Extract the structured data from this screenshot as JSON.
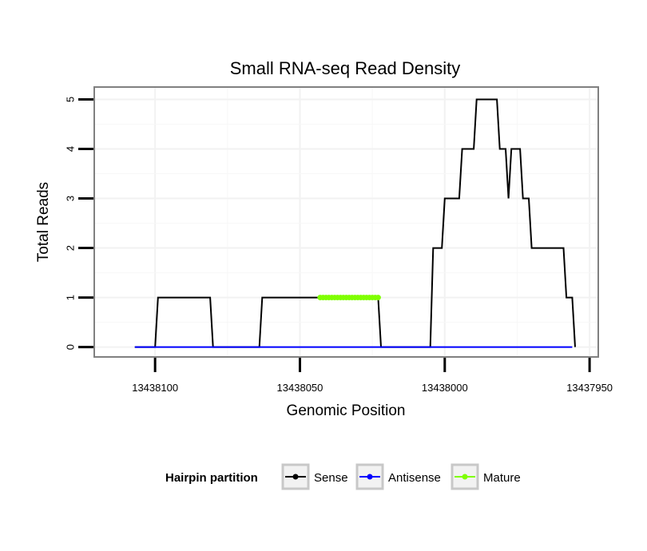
{
  "chart_data": {
    "type": "line",
    "title": "Small RNA-seq Read Density",
    "xlabel": "Genomic Position",
    "ylabel": "Total Reads",
    "xlim": [
      13438121,
      13437947
    ],
    "ylim": [
      -0.2,
      5.25
    ],
    "x_reversed": true,
    "grid": true,
    "x_ticks": [
      13438100,
      13438050,
      13438000,
      13437950
    ],
    "x_tick_labels": [
      "13438100",
      "13438050",
      "13438000",
      "13437950"
    ],
    "y_ticks": [
      0,
      1,
      2,
      3,
      4,
      5
    ],
    "y_tick_labels": [
      "0",
      "1",
      "2",
      "3",
      "4",
      "5"
    ],
    "series": [
      {
        "name": "Sense",
        "color": "#000000",
        "points": [
          [
            13438107,
            0
          ],
          [
            13438100,
            0
          ],
          [
            13438099,
            1
          ],
          [
            13438081,
            1
          ],
          [
            13438080,
            0
          ],
          [
            13438064,
            0
          ],
          [
            13438063,
            1
          ],
          [
            13438043,
            1
          ],
          [
            13438023,
            1
          ],
          [
            13438022,
            0
          ],
          [
            13438005,
            0
          ],
          [
            13438004,
            2
          ],
          [
            13438001,
            2
          ],
          [
            13438000,
            3
          ],
          [
            13437995,
            3
          ],
          [
            13437994,
            4
          ],
          [
            13437990,
            4
          ],
          [
            13437989,
            5
          ],
          [
            13437982,
            5
          ],
          [
            13437981,
            4
          ],
          [
            13437979,
            4
          ],
          [
            13437978,
            3
          ],
          [
            13437977,
            4
          ],
          [
            13437974,
            4
          ],
          [
            13437973,
            3
          ],
          [
            13437971,
            3
          ],
          [
            13437970,
            2
          ],
          [
            13437959,
            2
          ],
          [
            13437958,
            1
          ],
          [
            13437956,
            1
          ],
          [
            13437955,
            0
          ]
        ]
      },
      {
        "name": "Antisense",
        "color": "#0000ff",
        "points": [
          [
            13438107,
            0
          ],
          [
            13437956,
            0
          ]
        ]
      },
      {
        "name": "Mature",
        "color": "#7fff00",
        "points": [
          [
            13438043,
            1
          ],
          [
            13438042,
            1
          ],
          [
            13438041,
            1
          ],
          [
            13438040,
            1
          ],
          [
            13438039,
            1
          ],
          [
            13438038,
            1
          ],
          [
            13438037,
            1
          ],
          [
            13438036,
            1
          ],
          [
            13438035,
            1
          ],
          [
            13438034,
            1
          ],
          [
            13438033,
            1
          ],
          [
            13438032,
            1
          ],
          [
            13438031,
            1
          ],
          [
            13438030,
            1
          ],
          [
            13438029,
            1
          ],
          [
            13438028,
            1
          ],
          [
            13438027,
            1
          ],
          [
            13438026,
            1
          ],
          [
            13438025,
            1
          ],
          [
            13438024,
            1
          ],
          [
            13438023,
            1
          ]
        ]
      }
    ],
    "legend": {
      "title": "Hairpin partition",
      "position": "bottom",
      "entries": [
        "Sense",
        "Antisense",
        "Mature"
      ]
    }
  }
}
